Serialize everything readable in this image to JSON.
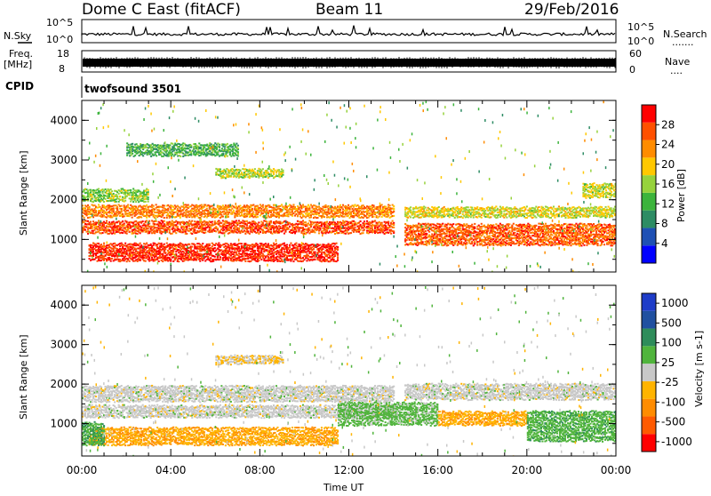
{
  "header": {
    "station": "Dome C East (fitACF)",
    "beam": "Beam 11",
    "date": "29/Feb/2016"
  },
  "top_panels": {
    "nsky_label": "N.Sky",
    "nsearch_label": "N.Search",
    "nsearch_dots": ".......",
    "noise_tick_high": "10^5",
    "noise_tick_low": "10^0",
    "freq_label": "Freq.",
    "freq_unit": "[MHz]",
    "freq_tick_high": "18",
    "freq_tick_low": "8",
    "nave_label": "Nave",
    "nave_dots": "....",
    "nave_tick_high": "60",
    "nave_tick_low": "0",
    "cpid_label": "CPID",
    "cpid_value": "twofsound 3501"
  },
  "axes": {
    "x_label": "Time UT",
    "x_ticks": [
      "00:00",
      "04:00",
      "08:00",
      "12:00",
      "16:00",
      "20:00",
      "00:00"
    ],
    "y_label": "Slant Range [km]",
    "y_ticks": [
      "1000",
      "2000",
      "3000",
      "4000"
    ]
  },
  "colorbars": {
    "power": {
      "label": "Power [dB]",
      "ticks": [
        "4",
        "8",
        "12",
        "16",
        "20",
        "24",
        "28"
      ],
      "colors": [
        "#0000ff",
        "#1e50b4",
        "#2d8c64",
        "#3cb43c",
        "#96d23c",
        "#ffc800",
        "#ff8c00",
        "#ff5000",
        "#ff0000"
      ]
    },
    "velocity": {
      "label": "Velocity [m s-1]",
      "ticks": [
        "1000",
        "500",
        "100",
        "25",
        "-25",
        "-100",
        "-500",
        "-1000"
      ],
      "colors": [
        "#1e3cc8",
        "#2050a0",
        "#2e8c5a",
        "#50b43c",
        "#c8c8c8",
        "#ffb400",
        "#ff8c00",
        "#ff5a00",
        "#ff0000"
      ]
    }
  },
  "chart_data": [
    {
      "type": "heatmap",
      "name": "power",
      "xlabel": "Time UT",
      "ylabel": "Slant Range [km]",
      "xlim": [
        "00:00",
        "24:00"
      ],
      "ylim": [
        180,
        4500
      ],
      "colorbar": {
        "label": "Power [dB]",
        "range": [
          0,
          32
        ]
      },
      "bands": [
        {
          "t0": 0.0,
          "t1": 14.0,
          "r0": 1550,
          "r1": 1850,
          "value": 24
        },
        {
          "t0": 0.0,
          "t1": 14.0,
          "r0": 1150,
          "r1": 1450,
          "value": 27
        },
        {
          "t0": 0.3,
          "t1": 11.5,
          "r0": 450,
          "r1": 900,
          "value": 29
        },
        {
          "t0": 14.5,
          "t1": 24.0,
          "r0": 1550,
          "r1": 1800,
          "value": 18
        },
        {
          "t0": 14.5,
          "t1": 24.0,
          "r0": 850,
          "r1": 1350,
          "value": 26
        },
        {
          "t0": 0.0,
          "t1": 3.0,
          "r0": 1950,
          "r1": 2250,
          "value": 15
        },
        {
          "t0": 6.0,
          "t1": 9.0,
          "r0": 2550,
          "r1": 2750,
          "value": 17
        },
        {
          "t0": 2.0,
          "t1": 7.0,
          "r0": 3100,
          "r1": 3400,
          "value": 12
        },
        {
          "t0": 22.5,
          "t1": 24.0,
          "r0": 2050,
          "r1": 2400,
          "value": 17
        }
      ]
    },
    {
      "type": "heatmap",
      "name": "velocity",
      "xlabel": "Time UT",
      "ylabel": "Slant Range [km]",
      "xlim": [
        "00:00",
        "24:00"
      ],
      "ylim": [
        180,
        4500
      ],
      "colorbar": {
        "label": "Velocity [m s-1]",
        "range": [
          -1000,
          1000
        ]
      },
      "bands": [
        {
          "t0": 0.0,
          "t1": 14.0,
          "r0": 1550,
          "r1": 1950,
          "value": 0
        },
        {
          "t0": 0.0,
          "t1": 14.0,
          "r0": 1150,
          "r1": 1450,
          "value": 0
        },
        {
          "t0": 0.3,
          "t1": 11.5,
          "r0": 450,
          "r1": 900,
          "value": -300
        },
        {
          "t0": 0.0,
          "t1": 1.0,
          "r0": 450,
          "r1": 1000,
          "value": 300
        },
        {
          "t0": 11.5,
          "t1": 16.0,
          "r0": 950,
          "r1": 1500,
          "value": 200
        },
        {
          "t0": 16.0,
          "t1": 20.0,
          "r0": 950,
          "r1": 1300,
          "value": -300
        },
        {
          "t0": 20.0,
          "t1": 24.0,
          "r0": 550,
          "r1": 1300,
          "value": 250
        },
        {
          "t0": 14.5,
          "t1": 24.0,
          "r0": 1600,
          "r1": 2000,
          "value": 0
        },
        {
          "t0": 6.0,
          "t1": 9.0,
          "r0": 2500,
          "r1": 2700,
          "value": -100
        }
      ]
    }
  ]
}
